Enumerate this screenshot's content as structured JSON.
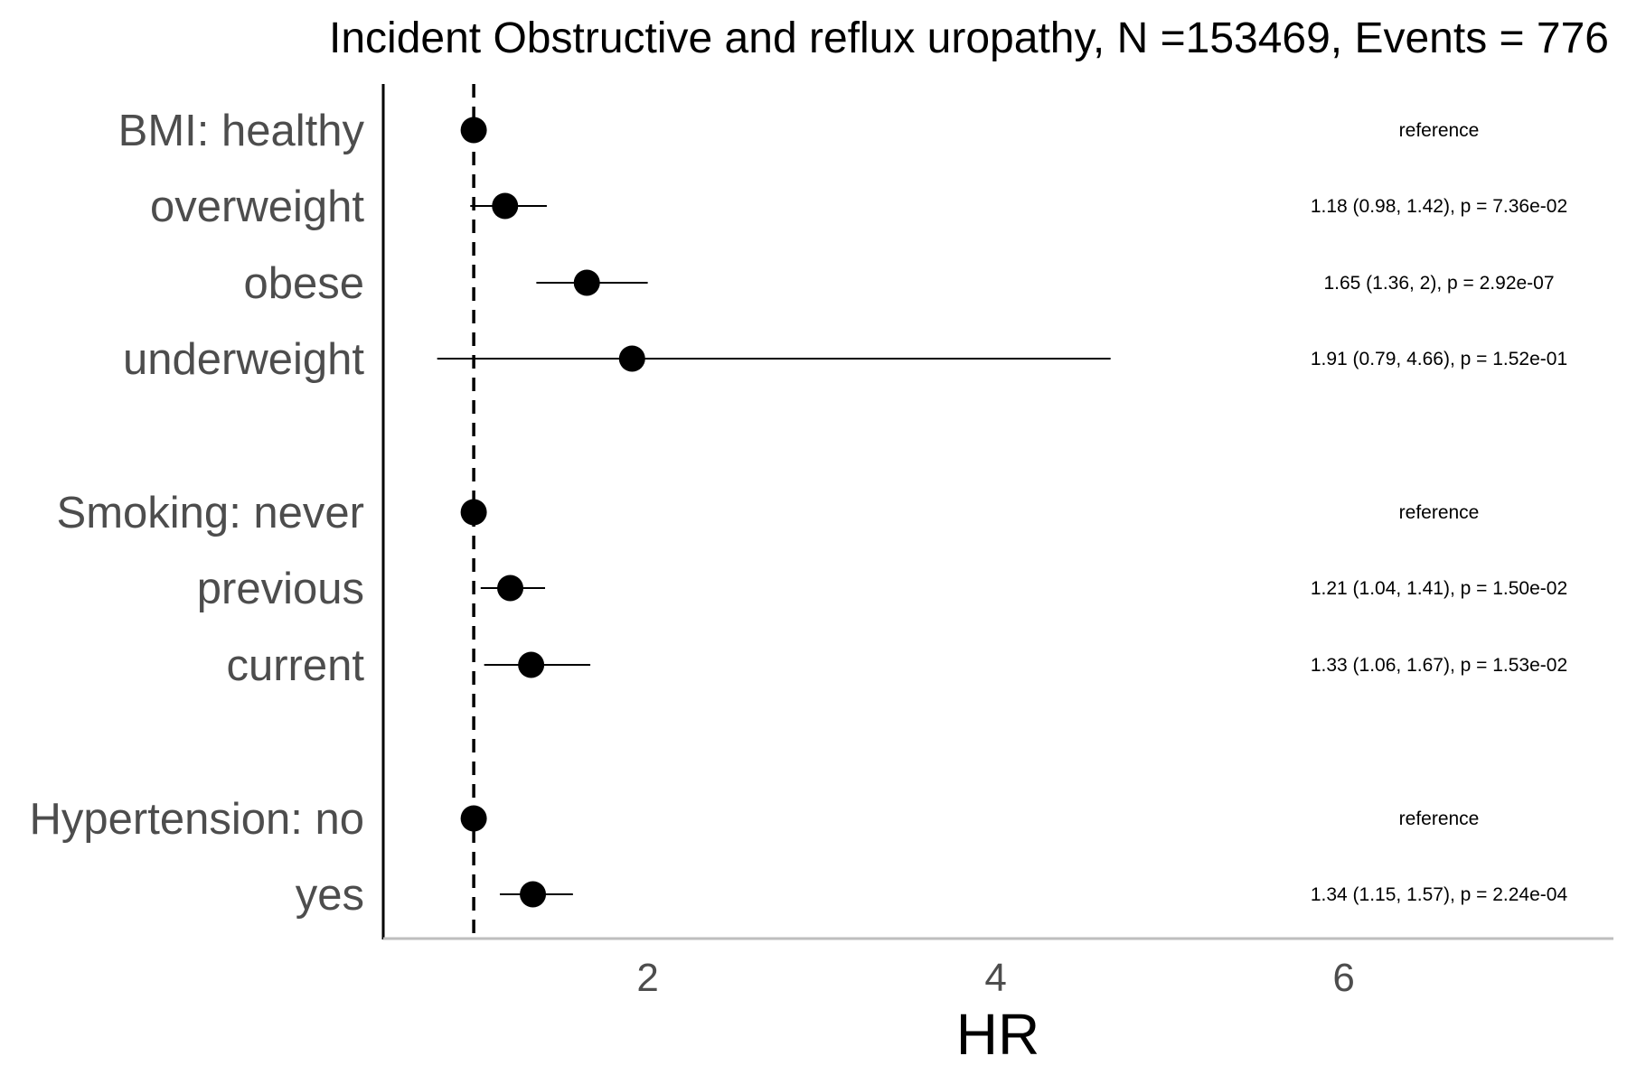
{
  "chart_data": {
    "type": "forest",
    "title": "Incident Obstructive and reflux uropathy, N =153469, Events = 776",
    "xlabel": "HR",
    "ylabel": "",
    "xlim": [
      0.48,
      7.55
    ],
    "x_ticks": [
      "2",
      "4",
      "6"
    ],
    "reference_line": 1,
    "rows": [
      {
        "label": "BMI: healthy",
        "hr": 1.0,
        "lo": null,
        "hi": null,
        "annotation": "reference"
      },
      {
        "label": "overweight",
        "hr": 1.18,
        "lo": 0.98,
        "hi": 1.42,
        "annotation": "1.18 (0.98, 1.42), p = 7.36e-02"
      },
      {
        "label": "obese",
        "hr": 1.65,
        "lo": 1.36,
        "hi": 2.0,
        "annotation": "1.65 (1.36, 2), p = 2.92e-07"
      },
      {
        "label": "underweight",
        "hr": 1.91,
        "lo": 0.79,
        "hi": 4.66,
        "annotation": "1.91 (0.79, 4.66), p = 1.52e-01"
      },
      {
        "label": "Smoking: never",
        "hr": 1.0,
        "lo": null,
        "hi": null,
        "annotation": "reference"
      },
      {
        "label": "previous",
        "hr": 1.21,
        "lo": 1.04,
        "hi": 1.41,
        "annotation": "1.21 (1.04, 1.41), p = 1.50e-02"
      },
      {
        "label": "current",
        "hr": 1.33,
        "lo": 1.06,
        "hi": 1.67,
        "annotation": "1.33 (1.06, 1.67), p = 1.53e-02"
      },
      {
        "label": "Hypertension: no",
        "hr": 1.0,
        "lo": null,
        "hi": null,
        "annotation": "reference"
      },
      {
        "label": "yes",
        "hr": 1.34,
        "lo": 1.15,
        "hi": 1.57,
        "annotation": "1.34 (1.15, 1.57), p = 2.24e-04"
      }
    ],
    "colors": {
      "point": "#000000",
      "ci": "#000000",
      "axis_x": "#bebebe",
      "axis_y": "#000000",
      "ref_line": "#000000"
    },
    "grid": false,
    "legend": "none"
  }
}
